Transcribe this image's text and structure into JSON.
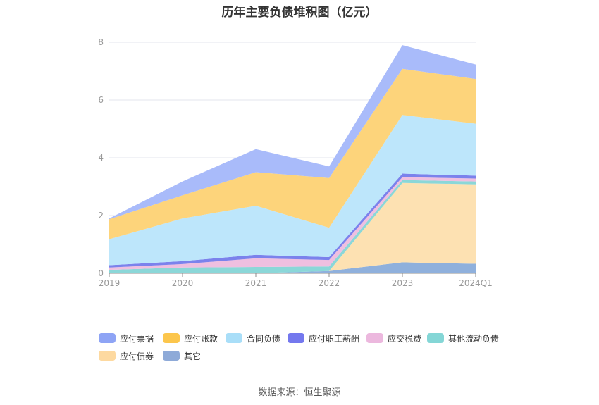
{
  "title": "历年主要负债堆积图（亿元）",
  "source": "数据来源：恒生聚源",
  "chart_data": {
    "type": "area",
    "stacked": true,
    "categories": [
      "2019",
      "2020",
      "2021",
      "2022",
      "2023",
      "2024Q1"
    ],
    "yticks": [
      "0",
      "2",
      "4",
      "6",
      "8"
    ],
    "ylim": [
      0,
      8
    ],
    "grid": true,
    "legend_position": "bottom",
    "series": [
      {
        "name": "其它",
        "color": "#8fb0dc",
        "values": [
          0.0,
          0.0,
          0.0,
          0.08,
          0.38,
          0.33
        ]
      },
      {
        "name": "应付债券",
        "color": "#fde1b2",
        "values": [
          0.0,
          0.0,
          0.0,
          0.0,
          2.75,
          2.75
        ]
      },
      {
        "name": "其他流动负债",
        "color": "#8bd7d8",
        "values": [
          0.12,
          0.2,
          0.22,
          0.16,
          0.1,
          0.1
        ]
      },
      {
        "name": "应交税费",
        "color": "#efbfe0",
        "values": [
          0.08,
          0.12,
          0.3,
          0.22,
          0.1,
          0.1
        ]
      },
      {
        "name": "应付职工薪酬",
        "color": "#7b82ec",
        "values": [
          0.08,
          0.1,
          0.12,
          0.1,
          0.12,
          0.1
        ]
      },
      {
        "name": "合同负债",
        "color": "#bde6fb",
        "values": [
          0.9,
          1.48,
          1.7,
          1.02,
          2.03,
          1.8
        ]
      },
      {
        "name": "应付账款",
        "color": "#fdd47b",
        "values": [
          0.69,
          0.8,
          1.16,
          1.72,
          1.6,
          1.55
        ]
      },
      {
        "name": "应付票据",
        "color": "#a9bbfa",
        "values": [
          0.03,
          0.48,
          0.8,
          0.4,
          0.82,
          0.5
        ]
      }
    ]
  },
  "legend": {
    "row1": [
      {
        "label": "应付票据",
        "color": "#8ea4f5"
      },
      {
        "label": "应付账款",
        "color": "#fcc64c"
      },
      {
        "label": "合同负债",
        "color": "#a9def8"
      },
      {
        "label": "应付职工薪酬",
        "color": "#7478ee"
      },
      {
        "label": "应交税费",
        "color": "#ecb8de"
      },
      {
        "label": "其他流动负债",
        "color": "#84d6d6"
      }
    ],
    "row2": [
      {
        "label": "应付债券",
        "color": "#fdd9a0"
      },
      {
        "label": "其它",
        "color": "#8eaad8"
      }
    ]
  }
}
